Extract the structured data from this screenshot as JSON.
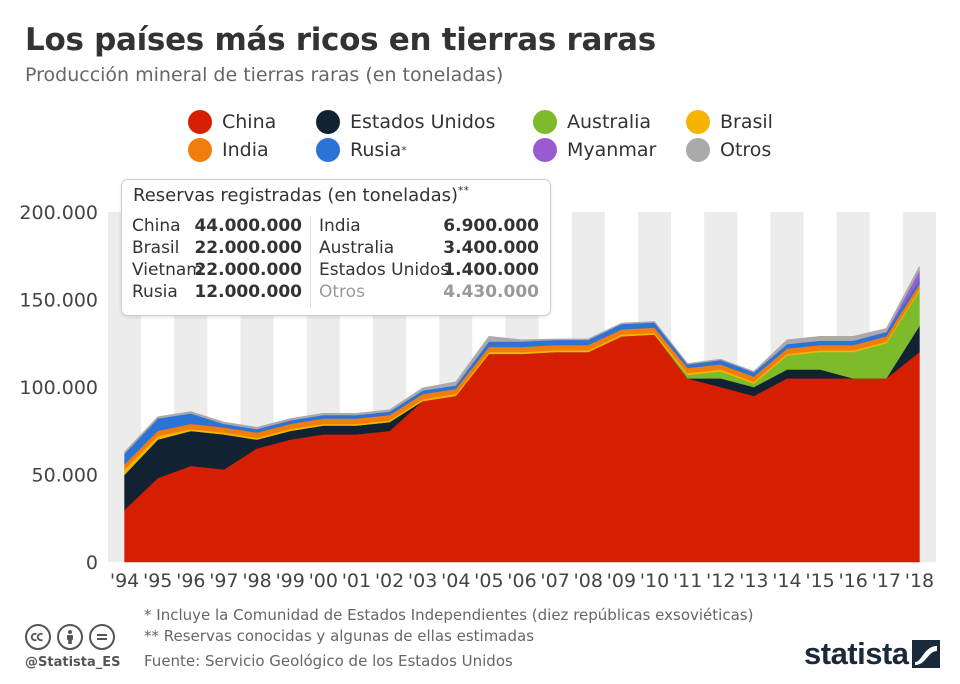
{
  "title": "Los países más ricos en tierras raras",
  "subtitle": "Producción mineral de tierras raras (en toneladas)",
  "legend": [
    {
      "name": "China",
      "color": "#d41f00",
      "sup": ""
    },
    {
      "name": "Estados Unidos",
      "color": "#112233",
      "sup": ""
    },
    {
      "name": "Australia",
      "color": "#7dbb2a",
      "sup": ""
    },
    {
      "name": "Brasil",
      "color": "#f6b400",
      "sup": ""
    },
    {
      "name": "India",
      "color": "#f07d0c",
      "sup": ""
    },
    {
      "name": "Rusia",
      "color": "#2b73d6",
      "sup": "*"
    },
    {
      "name": "Myanmar",
      "color": "#9a5ad0",
      "sup": ""
    },
    {
      "name": "Otros",
      "color": "#aaaaaa",
      "sup": ""
    }
  ],
  "reserves": {
    "title": "Reservas registradas (en toneladas)",
    "title_sup": "**",
    "left": [
      {
        "name": "China",
        "value": "44.000.000"
      },
      {
        "name": "Brasil",
        "value": "22.000.000"
      },
      {
        "name": "Vietnam",
        "value": "22.000.000"
      },
      {
        "name": "Rusia",
        "value": "12.000.000"
      }
    ],
    "right": [
      {
        "name": "India",
        "value": "6.900.000",
        "muted": false
      },
      {
        "name": "Australia",
        "value": "3.400.000",
        "muted": false
      },
      {
        "name": "Estados Unidos",
        "value": "1.400.000",
        "muted": false
      },
      {
        "name": "Otros",
        "value": "4.430.000",
        "muted": true
      }
    ]
  },
  "footnotes": {
    "note1": "*   Incluye la Comunidad de Estados Independientes (diez repúblicas exsoviéticas)",
    "note2": "** Reservas conocidas y algunas de ellas estimadas",
    "source": "Fuente: Servicio Geológico de los Estados Unidos"
  },
  "branding": {
    "handle": "@Statista_ES",
    "logo": "statista"
  },
  "chart_data": {
    "type": "area",
    "stacked": true,
    "categories": [
      "'94",
      "'95",
      "'96",
      "'97",
      "'98",
      "'99",
      "'00",
      "'01",
      "'02",
      "'03",
      "'04",
      "'05",
      "'06",
      "'07",
      "'08",
      "'09",
      "'10",
      "'11",
      "'12",
      "'13",
      "'14",
      "'15",
      "'16",
      "'17",
      "'18"
    ],
    "y_ticks": [
      "0",
      "50.000",
      "100.000",
      "150.000",
      "200.000"
    ],
    "ylim": [
      0,
      200000
    ],
    "grid": "alternating vertical bands",
    "series": [
      {
        "name": "China",
        "color": "#d41f00",
        "values": [
          30000,
          48000,
          55000,
          53000,
          65000,
          70000,
          73000,
          73000,
          75000,
          92000,
          95000,
          119000,
          119000,
          120000,
          120000,
          129000,
          130000,
          105000,
          100000,
          95000,
          105000,
          105000,
          105000,
          105000,
          120000
        ]
      },
      {
        "name": "Estados Unidos",
        "color": "#112233",
        "values": [
          20000,
          22000,
          20000,
          20000,
          5000,
          5000,
          5000,
          5000,
          5000,
          0,
          0,
          0,
          0,
          0,
          0,
          0,
          0,
          0,
          5000,
          5000,
          5000,
          5000,
          0,
          0,
          15000
        ]
      },
      {
        "name": "Australia",
        "color": "#7dbb2a",
        "values": [
          0,
          0,
          0,
          0,
          0,
          0,
          0,
          0,
          0,
          0,
          0,
          0,
          0,
          0,
          0,
          0,
          0,
          2000,
          4000,
          2000,
          8000,
          10000,
          15000,
          20000,
          20000
        ]
      },
      {
        "name": "Brasil",
        "color": "#f6b400",
        "values": [
          3000,
          2000,
          1000,
          1000,
          1000,
          1000,
          1000,
          1000,
          1000,
          1000,
          1000,
          1000,
          1000,
          1000,
          1000,
          1000,
          1000,
          1000,
          1000,
          1000,
          1000,
          1000,
          1000,
          1000,
          1000
        ]
      },
      {
        "name": "India",
        "color": "#f07d0c",
        "values": [
          3000,
          3000,
          3000,
          3000,
          3000,
          3000,
          3000,
          3000,
          3000,
          3000,
          3000,
          3000,
          3000,
          3000,
          3000,
          3000,
          3000,
          3000,
          3000,
          3000,
          3000,
          3000,
          3000,
          3000,
          3000
        ]
      },
      {
        "name": "Rusia",
        "color": "#2b73d6",
        "values": [
          6000,
          7000,
          6000,
          2000,
          2000,
          2000,
          2000,
          2000,
          2000,
          2000,
          2000,
          3000,
          3000,
          3000,
          3000,
          3000,
          3000,
          2000,
          2500,
          2500,
          2500,
          2500,
          2500,
          2500,
          2500
        ]
      },
      {
        "name": "Myanmar",
        "color": "#9a5ad0",
        "values": [
          0,
          0,
          0,
          0,
          0,
          0,
          0,
          0,
          0,
          0,
          0,
          0,
          0,
          0,
          0,
          0,
          0,
          0,
          0,
          0,
          0,
          0,
          0,
          0,
          5000
        ]
      },
      {
        "name": "Otros",
        "color": "#aaaaaa",
        "values": [
          1000,
          1000,
          1000,
          1000,
          1000,
          1000,
          1000,
          1000,
          1000,
          1500,
          2000,
          3000,
          1000,
          500,
          500,
          500,
          500,
          500,
          500,
          500,
          2500,
          2500,
          2500,
          2000,
          2500
        ]
      }
    ]
  }
}
